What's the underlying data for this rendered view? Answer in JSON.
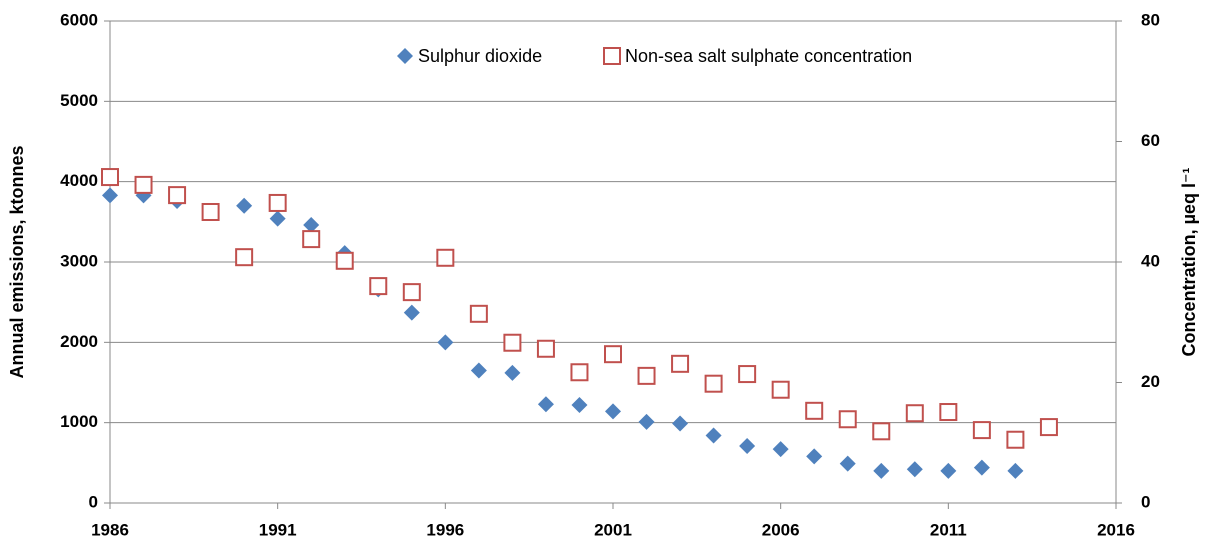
{
  "chart_data": {
    "type": "scatter",
    "y_label": "Annual emissions, ktonnes",
    "y2_label": "Concentration, µeq l⁻¹",
    "xlim": [
      1986,
      2016
    ],
    "xticks": [
      1986,
      1991,
      1996,
      2001,
      2006,
      2011,
      2016
    ],
    "ylim": [
      0,
      6000
    ],
    "yticks": [
      0,
      1000,
      2000,
      3000,
      4000,
      5000,
      6000
    ],
    "y2lim": [
      0,
      80
    ],
    "y2ticks": [
      0,
      20,
      40,
      60,
      80
    ],
    "grid": true,
    "legend": "top",
    "series": [
      {
        "name": "Sulphur dioxide",
        "color": "#4f81bd",
        "marker": "diamond",
        "x": [
          1986,
          1987,
          1988,
          1989,
          1990,
          1991,
          1992,
          1993,
          1994,
          1995,
          1996,
          1997,
          1998,
          1999,
          2000,
          2001,
          2002,
          2003,
          2004,
          2005,
          2006,
          2007,
          2008,
          2009,
          2010,
          2011,
          2012,
          2013
        ],
        "values": [
          3830,
          3830,
          3760,
          3620,
          3700,
          3540,
          3460,
          3110,
          2660,
          2370,
          2000,
          1650,
          1620,
          1230,
          1220,
          1140,
          1010,
          990,
          840,
          710,
          670,
          580,
          490,
          400,
          420,
          400,
          440,
          400
        ]
      },
      {
        "name": "Non-sea salt sulphate concentration",
        "color": "#c0504d",
        "marker": "square",
        "axis": "y2",
        "x": [
          1986,
          1987,
          1988,
          1989,
          1990,
          1991,
          1992,
          1993,
          1994,
          1995,
          1996,
          1997,
          1998,
          1999,
          2000,
          2001,
          2002,
          2003,
          2004,
          2005,
          2006,
          2007,
          2008,
          2009,
          2010,
          2011,
          2012,
          2013,
          2014
        ],
        "values": [
          54.1,
          52.8,
          51.1,
          48.3,
          40.8,
          49.8,
          43.8,
          40.2,
          36.0,
          35.0,
          40.7,
          31.4,
          26.6,
          25.6,
          21.7,
          24.7,
          21.1,
          23.1,
          19.8,
          21.4,
          18.8,
          15.3,
          13.9,
          11.9,
          14.9,
          15.1,
          12.1,
          10.5,
          12.6
        ]
      }
    ]
  }
}
